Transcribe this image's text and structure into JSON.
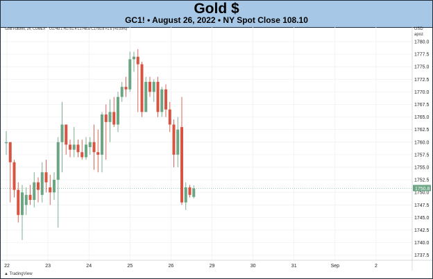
{
  "header": {
    "title": "Gold $",
    "subtitle": "GC1! • August 26, 2022 • NY Spot Close 108.10"
  },
  "legend": {
    "instrument": "Gold Futures, 2h, COMEX",
    "ohlc": "O1749.1  H1751.4  L1748.8  C1750.8  +1.6 (+0.09%)"
  },
  "price_axis": {
    "currency": "USD",
    "sub": "apoz"
  },
  "branding": {
    "text": "TradingView"
  },
  "colors": {
    "up": "#6ba583",
    "down": "#d75442",
    "grid": "#eef0f3",
    "last_price_bg": "#6ba583"
  },
  "chart_data": {
    "type": "candlestick",
    "y_ticks": [
      "1737.5",
      "1740.0",
      "1742.5",
      "1745.0",
      "1747.5",
      "1750.0",
      "1752.5",
      "1755.0",
      "1757.5",
      "1760.0",
      "1762.5",
      "1765.0",
      "1767.5",
      "1770.0",
      "1772.5",
      "1775.0",
      "1777.5",
      "1780.0"
    ],
    "ylim": [
      1735.5,
      1782.5
    ],
    "x_ticks": [
      "22",
      "23",
      "24",
      "25",
      "26",
      "29",
      "30",
      "31",
      "Sep",
      "2"
    ],
    "last_price": 1750.8,
    "last_price_label": "1750.8",
    "candles": [
      {
        "o": 1759.8,
        "h": 1762.2,
        "l": 1757.5,
        "c": 1760.0
      },
      {
        "o": 1760.0,
        "h": 1760.0,
        "l": 1748.0,
        "c": 1756.0
      },
      {
        "o": 1756.0,
        "h": 1756.5,
        "l": 1749.0,
        "c": 1750.5
      },
      {
        "o": 1750.5,
        "h": 1752.0,
        "l": 1744.0,
        "c": 1745.5
      },
      {
        "o": 1745.5,
        "h": 1751.5,
        "l": 1740.5,
        "c": 1750.0
      },
      {
        "o": 1747.5,
        "h": 1751.0,
        "l": 1745.5,
        "c": 1749.5
      },
      {
        "o": 1749.5,
        "h": 1751.5,
        "l": 1747.5,
        "c": 1748.5
      },
      {
        "o": 1748.5,
        "h": 1754.0,
        "l": 1747.0,
        "c": 1752.0
      },
      {
        "o": 1752.0,
        "h": 1753.0,
        "l": 1748.0,
        "c": 1750.5
      },
      {
        "o": 1749.5,
        "h": 1756.0,
        "l": 1748.0,
        "c": 1754.0
      },
      {
        "o": 1754.0,
        "h": 1756.5,
        "l": 1750.0,
        "c": 1752.0
      },
      {
        "o": 1751.0,
        "h": 1753.5,
        "l": 1747.5,
        "c": 1750.0
      },
      {
        "o": 1750.0,
        "h": 1754.0,
        "l": 1748.5,
        "c": 1752.5
      },
      {
        "o": 1752.5,
        "h": 1761.0,
        "l": 1743.0,
        "c": 1760.0
      },
      {
        "o": 1760.0,
        "h": 1768.0,
        "l": 1754.0,
        "c": 1763.5
      },
      {
        "o": 1763.5,
        "h": 1763.5,
        "l": 1757.5,
        "c": 1759.5
      },
      {
        "o": 1759.5,
        "h": 1760.5,
        "l": 1757.0,
        "c": 1758.5
      },
      {
        "o": 1758.5,
        "h": 1763.0,
        "l": 1757.0,
        "c": 1759.5
      },
      {
        "o": 1759.5,
        "h": 1760.5,
        "l": 1757.0,
        "c": 1758.0
      },
      {
        "o": 1758.0,
        "h": 1760.5,
        "l": 1756.5,
        "c": 1757.0
      },
      {
        "o": 1757.0,
        "h": 1761.0,
        "l": 1756.5,
        "c": 1759.5
      },
      {
        "o": 1759.0,
        "h": 1761.0,
        "l": 1757.5,
        "c": 1760.0
      },
      {
        "o": 1760.0,
        "h": 1763.5,
        "l": 1754.5,
        "c": 1758.0
      },
      {
        "o": 1758.0,
        "h": 1762.5,
        "l": 1754.0,
        "c": 1757.5
      },
      {
        "o": 1757.5,
        "h": 1766.0,
        "l": 1754.0,
        "c": 1765.5
      },
      {
        "o": 1765.5,
        "h": 1767.5,
        "l": 1756.5,
        "c": 1764.0
      },
      {
        "o": 1764.0,
        "h": 1768.5,
        "l": 1760.0,
        "c": 1766.0
      },
      {
        "o": 1766.0,
        "h": 1769.0,
        "l": 1763.0,
        "c": 1763.5
      },
      {
        "o": 1763.5,
        "h": 1770.0,
        "l": 1762.0,
        "c": 1769.0
      },
      {
        "o": 1769.0,
        "h": 1772.0,
        "l": 1768.0,
        "c": 1771.0
      },
      {
        "o": 1771.0,
        "h": 1773.0,
        "l": 1769.0,
        "c": 1770.5
      },
      {
        "o": 1770.5,
        "h": 1778.0,
        "l": 1770.0,
        "c": 1776.5
      },
      {
        "o": 1776.5,
        "h": 1778.0,
        "l": 1774.0,
        "c": 1777.0
      },
      {
        "o": 1777.0,
        "h": 1778.5,
        "l": 1766.0,
        "c": 1775.5
      },
      {
        "o": 1775.5,
        "h": 1776.0,
        "l": 1765.0,
        "c": 1766.0
      },
      {
        "o": 1766.0,
        "h": 1773.0,
        "l": 1766.0,
        "c": 1772.0
      },
      {
        "o": 1772.0,
        "h": 1773.0,
        "l": 1769.0,
        "c": 1770.0
      },
      {
        "o": 1770.0,
        "h": 1772.5,
        "l": 1768.0,
        "c": 1772.0
      },
      {
        "o": 1772.0,
        "h": 1773.0,
        "l": 1765.0,
        "c": 1766.0
      },
      {
        "o": 1766.0,
        "h": 1771.0,
        "l": 1765.0,
        "c": 1770.5
      },
      {
        "o": 1770.5,
        "h": 1771.5,
        "l": 1765.0,
        "c": 1766.5
      },
      {
        "o": 1766.5,
        "h": 1768.0,
        "l": 1762.0,
        "c": 1763.5
      },
      {
        "o": 1763.5,
        "h": 1764.5,
        "l": 1755.0,
        "c": 1757.5
      },
      {
        "o": 1757.5,
        "h": 1765.0,
        "l": 1755.0,
        "c": 1762.5
      },
      {
        "o": 1763.0,
        "h": 1769.0,
        "l": 1747.5,
        "c": 1748.0
      },
      {
        "o": 1748.0,
        "h": 1752.0,
        "l": 1746.5,
        "c": 1751.0
      },
      {
        "o": 1751.0,
        "h": 1751.5,
        "l": 1749.0,
        "c": 1749.5
      },
      {
        "o": 1749.1,
        "h": 1751.4,
        "l": 1748.8,
        "c": 1750.8
      }
    ]
  }
}
